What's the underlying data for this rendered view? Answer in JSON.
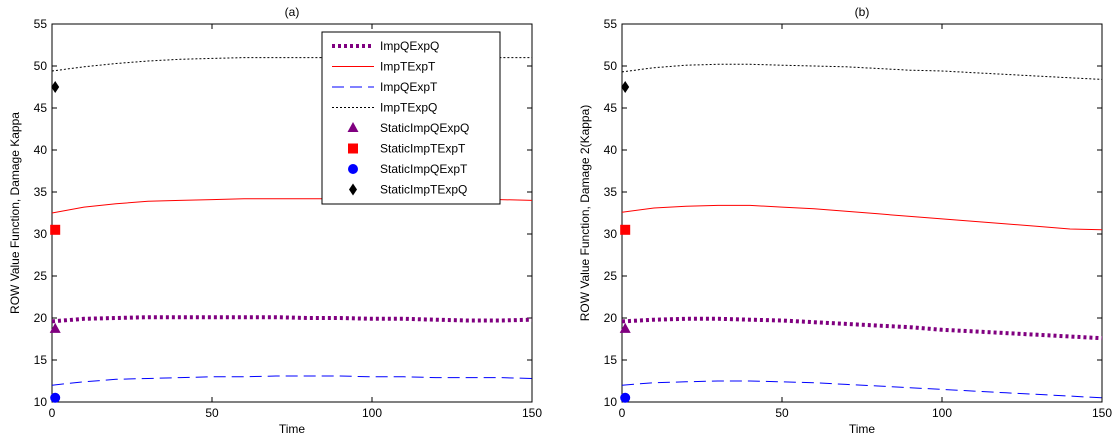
{
  "chart_data": [
    {
      "type": "line",
      "title": "(a)",
      "xlabel": "Time",
      "ylabel": "ROW Value Function, Damage Kappa",
      "xlim": [
        0,
        150
      ],
      "ylim": [
        10,
        55
      ],
      "xticks": [
        0,
        50,
        100,
        150
      ],
      "yticks": [
        10,
        15,
        20,
        25,
        30,
        35,
        40,
        45,
        50,
        55
      ],
      "grid": false,
      "legend_position": "top-right",
      "series": [
        {
          "name": "ImpQExpQ",
          "color": "#800080",
          "style": "dotted-thick",
          "x": [
            0,
            10,
            20,
            30,
            40,
            50,
            60,
            70,
            80,
            90,
            100,
            110,
            120,
            130,
            140,
            150
          ],
          "y": [
            19.6,
            19.9,
            20.0,
            20.1,
            20.1,
            20.1,
            20.1,
            20.1,
            20.0,
            20.0,
            19.9,
            19.9,
            19.8,
            19.7,
            19.7,
            19.8
          ]
        },
        {
          "name": "ImpTExpT",
          "color": "#ff0000",
          "style": "solid",
          "x": [
            0,
            10,
            20,
            30,
            40,
            50,
            60,
            70,
            80,
            90,
            100,
            110,
            120,
            130,
            140,
            150
          ],
          "y": [
            32.5,
            33.2,
            33.6,
            33.9,
            34.0,
            34.1,
            34.2,
            34.2,
            34.2,
            34.2,
            34.2,
            34.2,
            34.1,
            34.1,
            34.1,
            34.0
          ]
        },
        {
          "name": "ImpQExpT",
          "color": "#0000ff",
          "style": "long-dash",
          "x": [
            0,
            10,
            20,
            30,
            40,
            50,
            60,
            70,
            80,
            90,
            100,
            110,
            120,
            130,
            140,
            150
          ],
          "y": [
            12.0,
            12.4,
            12.7,
            12.8,
            12.9,
            13.0,
            13.0,
            13.1,
            13.1,
            13.1,
            13.0,
            13.0,
            12.9,
            12.9,
            12.9,
            12.8
          ]
        },
        {
          "name": "ImpTExpQ",
          "color": "#000000",
          "style": "dotted",
          "x": [
            0,
            10,
            20,
            30,
            40,
            50,
            60,
            70,
            80,
            90,
            100,
            110,
            120,
            130,
            140,
            150
          ],
          "y": [
            49.4,
            49.9,
            50.3,
            50.6,
            50.8,
            50.9,
            51.0,
            51.0,
            51.0,
            51.0,
            51.0,
            51.0,
            51.0,
            51.0,
            51.0,
            51.0
          ]
        }
      ],
      "static_points": [
        {
          "name": "StaticImpQExpQ",
          "marker": "triangle",
          "color": "#800080",
          "x": 1,
          "y": 18.7
        },
        {
          "name": "StaticImpTExpT",
          "marker": "square",
          "color": "#ff0000",
          "x": 1,
          "y": 30.5
        },
        {
          "name": "StaticImpQExpT",
          "marker": "circle",
          "color": "#0000ff",
          "x": 1,
          "y": 10.5
        },
        {
          "name": "StaticImpTExpQ",
          "marker": "diamond",
          "color": "#000000",
          "x": 1,
          "y": 47.5
        }
      ]
    },
    {
      "type": "line",
      "title": "(b)",
      "xlabel": "Time",
      "ylabel": "ROW Value Function, Damage 2(Kappa)",
      "xlim": [
        0,
        150
      ],
      "ylim": [
        10,
        55
      ],
      "xticks": [
        0,
        50,
        100,
        150
      ],
      "yticks": [
        10,
        15,
        20,
        25,
        30,
        35,
        40,
        45,
        50,
        55
      ],
      "grid": false,
      "series": [
        {
          "name": "ImpQExpQ",
          "color": "#800080",
          "style": "dotted-thick",
          "x": [
            0,
            10,
            20,
            30,
            40,
            50,
            60,
            70,
            80,
            90,
            100,
            110,
            120,
            130,
            140,
            150
          ],
          "y": [
            19.6,
            19.8,
            19.9,
            19.9,
            19.8,
            19.7,
            19.5,
            19.3,
            19.1,
            18.9,
            18.6,
            18.4,
            18.2,
            18.0,
            17.8,
            17.6
          ]
        },
        {
          "name": "ImpTExpT",
          "color": "#ff0000",
          "style": "solid",
          "x": [
            0,
            10,
            20,
            30,
            40,
            50,
            60,
            70,
            80,
            90,
            100,
            110,
            120,
            130,
            140,
            150
          ],
          "y": [
            32.6,
            33.1,
            33.3,
            33.4,
            33.4,
            33.2,
            33.0,
            32.7,
            32.4,
            32.1,
            31.8,
            31.5,
            31.2,
            30.9,
            30.6,
            30.5
          ]
        },
        {
          "name": "ImpQExpT",
          "color": "#0000ff",
          "style": "long-dash",
          "x": [
            0,
            10,
            20,
            30,
            40,
            50,
            60,
            70,
            80,
            90,
            100,
            110,
            120,
            130,
            140,
            150
          ],
          "y": [
            12.0,
            12.3,
            12.4,
            12.5,
            12.5,
            12.4,
            12.3,
            12.1,
            11.9,
            11.7,
            11.5,
            11.3,
            11.1,
            10.9,
            10.7,
            10.5
          ]
        },
        {
          "name": "ImpTExpQ",
          "color": "#000000",
          "style": "dotted",
          "x": [
            0,
            10,
            20,
            30,
            40,
            50,
            60,
            70,
            80,
            90,
            100,
            110,
            120,
            130,
            140,
            150
          ],
          "y": [
            49.3,
            49.8,
            50.1,
            50.2,
            50.2,
            50.1,
            50.0,
            49.9,
            49.7,
            49.5,
            49.4,
            49.2,
            49.0,
            48.8,
            48.6,
            48.4
          ]
        }
      ],
      "static_points": [
        {
          "name": "StaticImpQExpQ",
          "marker": "triangle",
          "color": "#800080",
          "x": 1,
          "y": 18.7
        },
        {
          "name": "StaticImpTExpT",
          "marker": "square",
          "color": "#ff0000",
          "x": 1,
          "y": 30.5
        },
        {
          "name": "StaticImpQExpT",
          "marker": "circle",
          "color": "#0000ff",
          "x": 1,
          "y": 10.5
        },
        {
          "name": "StaticImpTExpQ",
          "marker": "diamond",
          "color": "#000000",
          "x": 1,
          "y": 47.5
        }
      ]
    }
  ]
}
